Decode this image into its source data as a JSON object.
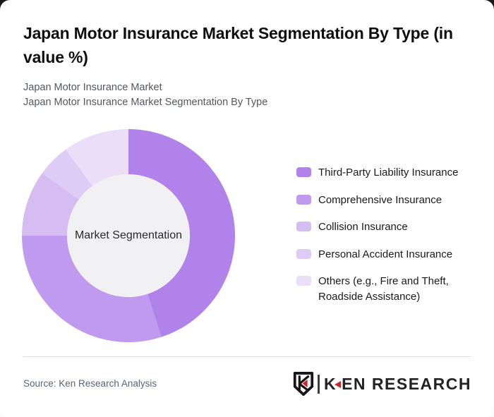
{
  "page": {
    "backdrop_color": "#191919",
    "card_color": "#ffffff"
  },
  "header": {
    "title": "Japan Motor Insurance Market Segmentation By Type (in value %)",
    "subtitle_line1": "Japan Motor Insurance Market",
    "subtitle_line2": "Japan Motor Insurance Market Segmentation By Type"
  },
  "chart_data": {
    "type": "pie",
    "subtype": "donut",
    "title": "Japan Motor Insurance Market Segmentation By Type (in value %)",
    "center_label": "Market Segmentation",
    "labels": [
      "Third-Party Liability Insurance",
      "Comprehensive Insurance",
      "Collision Insurance",
      "Personal Accident Insurance",
      "Others (e.g., Fire and Theft, Roadside Assistance)"
    ],
    "values_pct": [
      45,
      30,
      10,
      5,
      10
    ],
    "colors": [
      "#b183ea",
      "#c09aee",
      "#d5bdf2",
      "#dfccf6",
      "#ebdef9"
    ],
    "hole_color": "#f1f0f2",
    "start_angle_deg": 0,
    "direction": "clockwise",
    "inner_radius_ratio": 0.576,
    "legend_position": "right",
    "data_labels_shown": false
  },
  "footer": {
    "source": "Source: Ken Research Analysis",
    "logo": {
      "emblem_letter": "K",
      "wordmark_k": "K",
      "wordmark_rest": "EN RESEARCH",
      "brand_red": "#c9252b"
    }
  }
}
